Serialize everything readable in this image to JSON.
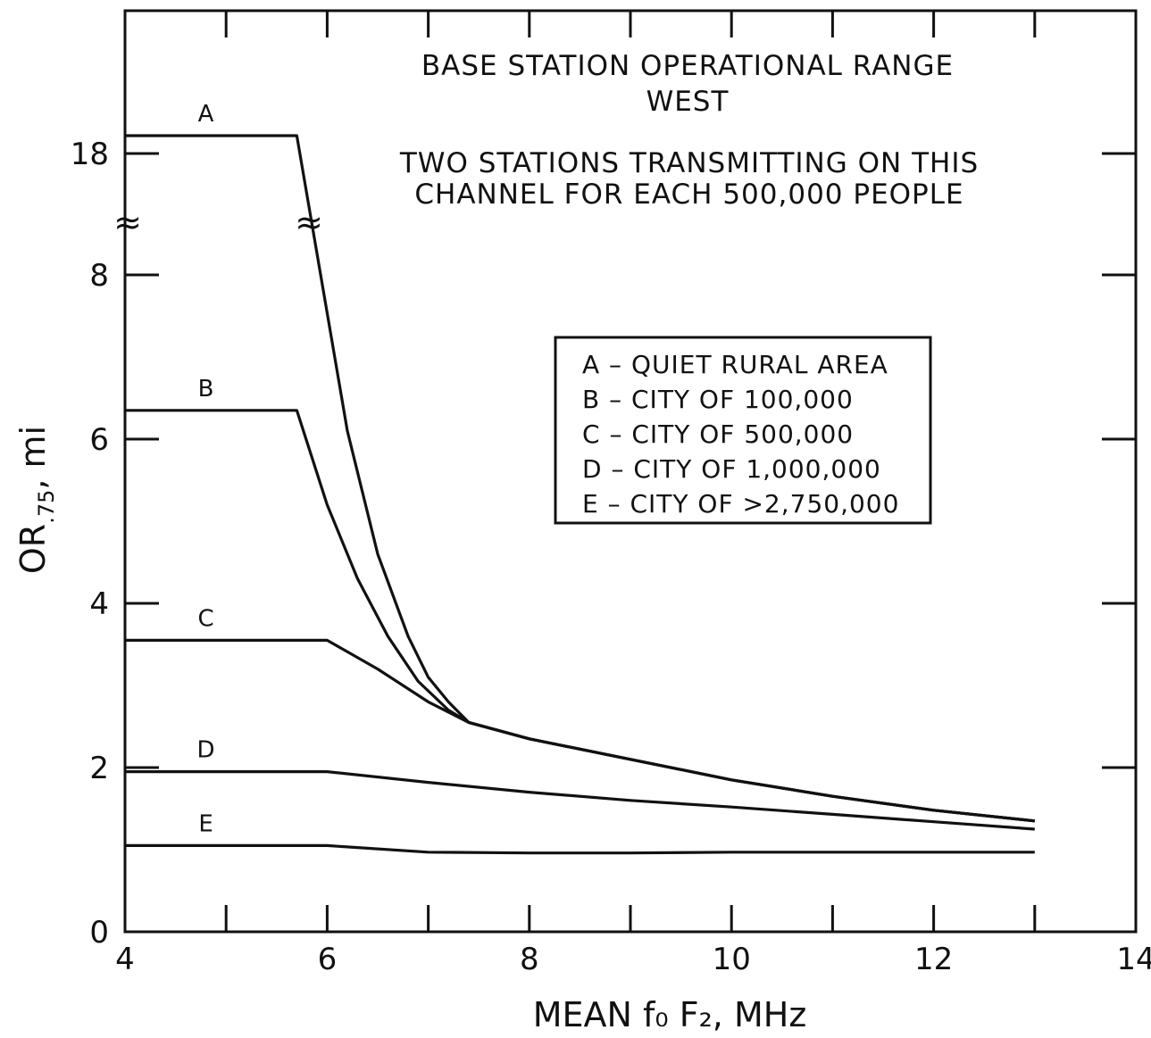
{
  "chart_data": {
    "type": "line",
    "title": "BASE STATION OPERATIONAL RANGE",
    "subtitle": "WEST",
    "annotation": [
      "TWO STATIONS TRANSMITTING ON THIS",
      "CHANNEL FOR EACH 500,000  PEOPLE"
    ],
    "xlabel": "MEAN f₀ F₂, MHz",
    "ylabel": "OR.75, mi",
    "ylabel_main": "OR",
    "ylabel_sub": ".75",
    "ylabel_unit": ", mi",
    "xlim": [
      4,
      14
    ],
    "ylim": [
      0,
      9
    ],
    "x_ticks": [
      4,
      6,
      8,
      10,
      12,
      14
    ],
    "y_ticks": [
      0,
      2,
      4,
      6,
      8
    ],
    "y_break": {
      "below": 8,
      "above": 18,
      "break_symbol": "≈"
    },
    "y_break_label": "18",
    "grid": false,
    "legend": {
      "position": "center-right",
      "entries": [
        "A – QUIET  RURAL  AREA",
        "B – CITY  OF  100,000",
        "C – CITY  OF  500,000",
        "D – CITY  OF  1,000,000",
        "E – CITY  OF  >2,750,000"
      ]
    },
    "series": [
      {
        "name": "A",
        "x": [
          4.0,
          5.7,
          6.2,
          6.5,
          6.8,
          7.0,
          7.2,
          7.4,
          8.0,
          9.0,
          10.0,
          11.0,
          12.0,
          13.0
        ],
        "y": [
          18.3,
          18.3,
          6.1,
          4.6,
          3.6,
          3.1,
          2.8,
          2.55,
          2.35,
          2.1,
          1.85,
          1.65,
          1.48,
          1.35
        ]
      },
      {
        "name": "B",
        "x": [
          4.0,
          5.7,
          6.0,
          6.3,
          6.6,
          6.9,
          7.2,
          7.4,
          8.0,
          9.0,
          10.0,
          11.0,
          12.0,
          13.0
        ],
        "y": [
          6.35,
          6.35,
          5.2,
          4.3,
          3.6,
          3.05,
          2.7,
          2.55,
          2.35,
          2.1,
          1.85,
          1.65,
          1.48,
          1.35
        ]
      },
      {
        "name": "C",
        "x": [
          4.0,
          6.0,
          6.5,
          7.0,
          7.4,
          8.0,
          9.0,
          10.0,
          11.0,
          12.0,
          13.0
        ],
        "y": [
          3.55,
          3.55,
          3.2,
          2.8,
          2.55,
          2.35,
          2.1,
          1.85,
          1.65,
          1.48,
          1.35
        ]
      },
      {
        "name": "D",
        "x": [
          4.0,
          6.0,
          7.0,
          8.0,
          9.0,
          10.0,
          11.0,
          12.0,
          13.0
        ],
        "y": [
          1.95,
          1.95,
          1.82,
          1.7,
          1.6,
          1.52,
          1.43,
          1.34,
          1.25
        ]
      },
      {
        "name": "E",
        "x": [
          4.0,
          6.0,
          7.0,
          8.0,
          9.0,
          10.0,
          11.0,
          12.0,
          13.0
        ],
        "y": [
          1.05,
          1.05,
          0.97,
          0.96,
          0.96,
          0.97,
          0.97,
          0.97,
          0.97
        ]
      }
    ],
    "curve_labels": [
      "A",
      "B",
      "C",
      "D",
      "E"
    ]
  }
}
